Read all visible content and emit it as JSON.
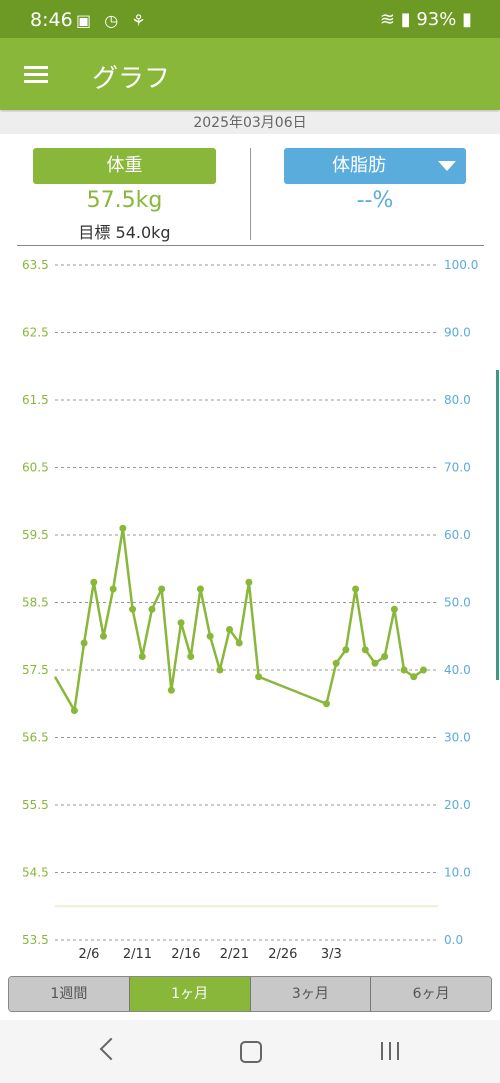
{
  "status_bar": {
    "time": "8:46",
    "battery": "93%",
    "icons": [
      "gallery-icon",
      "alarm-icon",
      "notification-icon",
      "wifi-icon",
      "signal-icon",
      "battery-icon"
    ]
  },
  "app_bar": {
    "title": "グラフ"
  },
  "date": "2025年03月06日",
  "weight": {
    "button_label": "体重",
    "value": "57.5kg",
    "target": "目標 54.0kg"
  },
  "body_fat": {
    "button_label": "体脂肪",
    "value": "--%"
  },
  "range_tabs": [
    {
      "label": "1週間",
      "active": false
    },
    {
      "label": "1ヶ月",
      "active": true
    },
    {
      "label": "3ヶ月",
      "active": false
    },
    {
      "label": "6ヶ月",
      "active": false
    }
  ],
  "colors": {
    "accent": "#88b73a",
    "status_bar": "#6d9a24",
    "fat_blue": "#5aacdc",
    "target_line": "#f0ecd8"
  },
  "chart_data": {
    "type": "line",
    "x_tick_labels": [
      "2/6",
      "2/11",
      "2/16",
      "2/21",
      "2/26",
      "3/3"
    ],
    "y_left": {
      "ticks": [
        "63.5",
        "62.5",
        "61.5",
        "60.5",
        "59.5",
        "58.5",
        "57.5",
        "56.5",
        "55.5",
        "54.5",
        "53.5"
      ],
      "min": 53.5,
      "max": 63.5
    },
    "y_right": {
      "ticks": [
        "100.0",
        "90.0",
        "80.0",
        "70.0",
        "60.0",
        "50.0",
        "40.0",
        "30.0",
        "20.0",
        "10.0",
        "0.0"
      ],
      "min": 0,
      "max": 100
    },
    "target_value": 54.0,
    "grid": true,
    "series": [
      {
        "x": [
          2,
          3,
          4,
          5,
          6,
          7,
          8,
          9,
          10,
          11,
          12,
          13,
          14,
          15,
          16,
          17,
          18,
          19,
          20,
          21,
          28,
          29,
          30,
          31,
          32,
          33,
          34,
          35,
          36,
          37,
          38
        ],
        "values": [
          56.9,
          57.9,
          58.8,
          58.0,
          58.7,
          59.6,
          58.4,
          57.7,
          58.4,
          58.7,
          57.2,
          58.2,
          57.7,
          58.7,
          58.0,
          57.5,
          58.1,
          57.9,
          58.8,
          57.4,
          57.0,
          57.6,
          57.8,
          58.7,
          57.8,
          57.6,
          57.7,
          58.4,
          57.5,
          57.4,
          57.5
        ],
        "lead_in_value": 57.4
      }
    ]
  }
}
